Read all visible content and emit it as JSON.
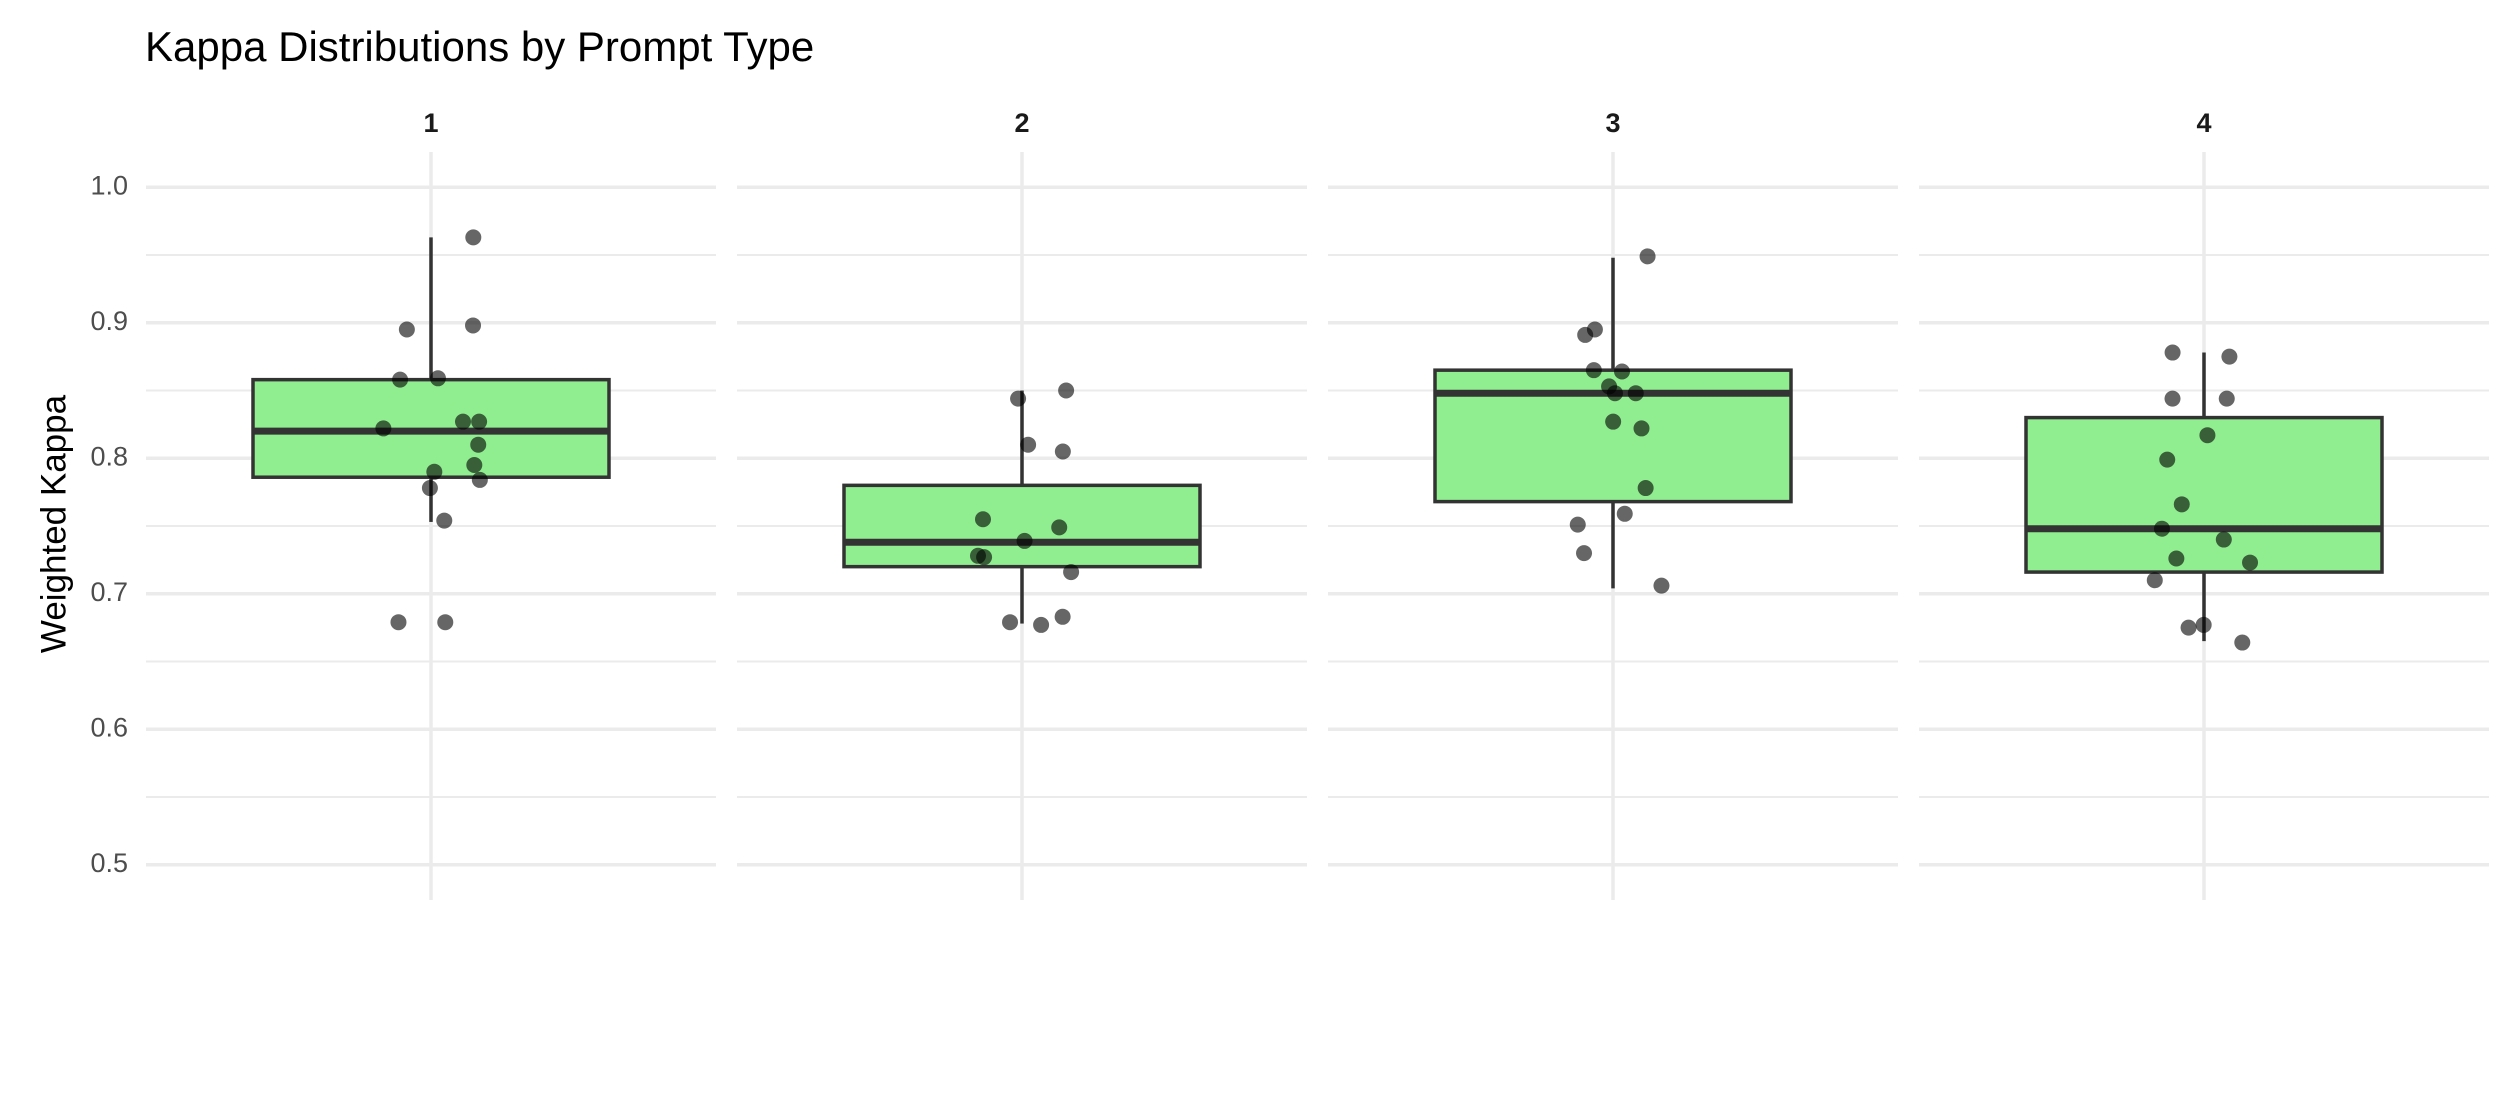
{
  "chart_data": {
    "type": "box",
    "title": "Kappa Distributions by Prompt Type",
    "y_label": "Weighted Kappa",
    "ylim": [
      0.474,
      1.026
    ],
    "yticks": [
      0.5,
      0.6,
      0.7,
      0.8,
      0.9,
      {
        "value": 1,
        "label": "1.0"
      }
    ],
    "grid": true,
    "box_color": "#90ee90",
    "point_color": "#000000",
    "facets": [
      {
        "label": "1",
        "whisker_low": 0.753,
        "q1": 0.786,
        "median": 0.82,
        "q3": 0.858,
        "whisker_high": 0.963,
        "points": [
          0.963,
          0.895,
          0.898,
          0.859,
          0.858,
          0.822,
          0.827,
          0.827,
          0.81,
          0.79,
          0.795,
          0.778,
          0.784,
          0.754,
          0.679,
          0.679
        ]
      },
      {
        "label": "2",
        "whisker_low": 0.678,
        "q1": 0.72,
        "median": 0.738,
        "q3": 0.78,
        "whisker_high": 0.85,
        "points": [
          0.85,
          0.844,
          0.81,
          0.805,
          0.755,
          0.749,
          0.739,
          0.728,
          0.727,
          0.716,
          0.683,
          0.679,
          0.677
        ]
      },
      {
        "label": "3",
        "whisker_low": 0.704,
        "q1": 0.768,
        "median": 0.848,
        "q3": 0.865,
        "whisker_high": 0.948,
        "points": [
          0.949,
          0.891,
          0.895,
          0.865,
          0.864,
          0.853,
          0.848,
          0.848,
          0.822,
          0.827,
          0.778,
          0.759,
          0.751,
          0.73,
          0.706
        ]
      },
      {
        "label": "4",
        "whisker_low": 0.665,
        "q1": 0.716,
        "median": 0.748,
        "q3": 0.83,
        "whisker_high": 0.878,
        "points": [
          0.878,
          0.875,
          0.844,
          0.844,
          0.817,
          0.799,
          0.766,
          0.748,
          0.74,
          0.71,
          0.726,
          0.723,
          0.677,
          0.675,
          0.664
        ]
      }
    ]
  }
}
